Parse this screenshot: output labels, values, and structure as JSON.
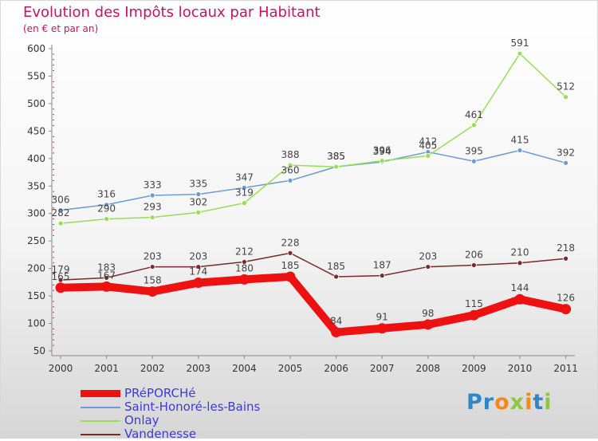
{
  "header": {
    "title": "Evolution des Impôts locaux par Habitant",
    "subtitle": "(en € et par an)"
  },
  "logo": {
    "text": "Proxiti"
  },
  "chart_data": {
    "type": "line",
    "title": "Evolution des Impôts locaux par Habitant",
    "subtitle": "(en € et par an)",
    "xlabel": "",
    "ylabel": "",
    "categories": [
      "2000",
      "2001",
      "2002",
      "2003",
      "2004",
      "2005",
      "2006",
      "2007",
      "2008",
      "2009",
      "2010",
      "2011"
    ],
    "ylim": [
      50,
      600
    ],
    "yticks": [
      50,
      100,
      150,
      200,
      250,
      300,
      350,
      400,
      450,
      500,
      550,
      600
    ],
    "grid": false,
    "legend_position": "bottom-left",
    "series": [
      {
        "name": "PRéPORCHé",
        "color": "#ee1111",
        "values": [
          165,
          167,
          158,
          174,
          180,
          185,
          84,
          91,
          98,
          115,
          144,
          126
        ],
        "labels": [
          "165",
          "167",
          "158",
          "174",
          "180",
          "185",
          "84",
          "91",
          "98",
          "115",
          "144",
          "126"
        ]
      },
      {
        "name": "Saint-Honoré-les-Bains",
        "color": "#6b9bd1",
        "values": [
          306,
          316,
          333,
          335,
          347,
          360,
          385,
          394,
          412,
          395,
          415,
          392
        ],
        "labels": [
          "306",
          "316",
          "333",
          "335",
          "347",
          "360",
          "385",
          "394",
          "412",
          "395",
          "415",
          "392"
        ]
      },
      {
        "name": "Onlay",
        "color": "#99dd55",
        "values": [
          282,
          290,
          293,
          302,
          319,
          388,
          385,
          396,
          405,
          461,
          591,
          512
        ],
        "labels": [
          "282",
          "290",
          "293",
          "302",
          "319",
          "388",
          "385",
          "396",
          "405",
          "461",
          "591",
          "512"
        ]
      },
      {
        "name": "Vandenesse",
        "color": "#7a2a2a",
        "values": [
          179,
          183,
          203,
          203,
          212,
          228,
          185,
          187,
          203,
          206,
          210,
          218
        ],
        "labels": [
          "179",
          "183",
          "203",
          "203",
          "212",
          "228",
          "185",
          "187",
          "203",
          "206",
          "210",
          "218"
        ]
      }
    ]
  }
}
